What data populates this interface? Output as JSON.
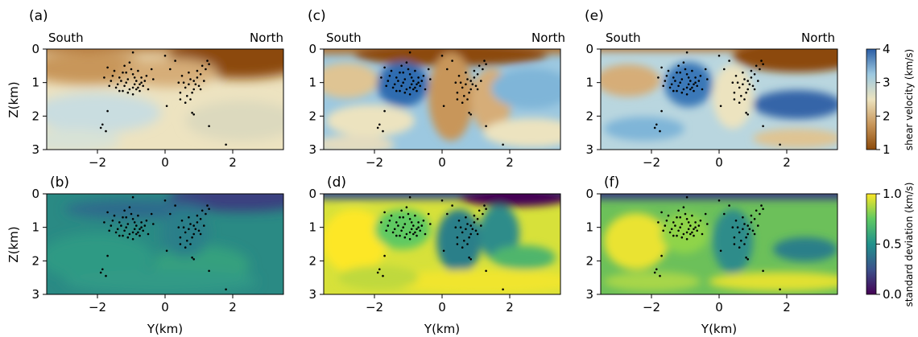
{
  "chart_data": [
    {
      "type": "heatmap",
      "panel_label": "(a)",
      "quantity": "shear velocity",
      "title_left": "South",
      "title_right": "North",
      "ylabel": "Z(km)",
      "xlabel": "",
      "xlim": [
        -3.5,
        3.5
      ],
      "ylim": [
        0,
        3
      ],
      "clim": [
        1,
        4
      ]
    },
    {
      "type": "heatmap",
      "panel_label": "(b)",
      "quantity": "standard deviation",
      "ylabel": "Z(km)",
      "xlabel": "Y(km)",
      "xlim": [
        -3.5,
        3.5
      ],
      "ylim": [
        0,
        3
      ],
      "clim": [
        0,
        1
      ]
    },
    {
      "type": "heatmap",
      "panel_label": "(c)",
      "quantity": "shear velocity",
      "title_left": "South",
      "title_right": "North",
      "ylabel": "",
      "xlabel": "",
      "xlim": [
        -3.5,
        3.5
      ],
      "ylim": [
        0,
        3
      ],
      "clim": [
        1,
        4
      ]
    },
    {
      "type": "heatmap",
      "panel_label": "(d)",
      "quantity": "standard deviation",
      "ylabel": "",
      "xlabel": "Y(km)",
      "xlim": [
        -3.5,
        3.5
      ],
      "ylim": [
        0,
        3
      ],
      "clim": [
        0,
        1
      ]
    },
    {
      "type": "heatmap",
      "panel_label": "(e)",
      "quantity": "shear velocity",
      "title_left": "South",
      "title_right": "North",
      "ylabel": "",
      "xlabel": "",
      "xlim": [
        -3.5,
        3.5
      ],
      "ylim": [
        0,
        3
      ],
      "clim": [
        1,
        4
      ]
    },
    {
      "type": "heatmap",
      "panel_label": "(f)",
      "quantity": "standard deviation",
      "ylabel": "",
      "xlabel": "Y(km)",
      "xlim": [
        -3.5,
        3.5
      ],
      "ylim": [
        0,
        3
      ],
      "clim": [
        0,
        1
      ]
    }
  ],
  "axes": {
    "x_ticks": [
      -2,
      0,
      2
    ],
    "x_tick_labels": [
      "−2",
      "0",
      "2"
    ],
    "y_ticks": [
      0,
      1,
      2,
      3
    ],
    "y_tick_labels": [
      "0",
      "1",
      "2",
      "3"
    ]
  },
  "colorbars": {
    "velocity": {
      "label": "shear velocity (km/s)",
      "ticks": [
        1,
        2,
        3,
        4
      ],
      "tick_labels": [
        "1",
        "2",
        "3",
        "4"
      ],
      "colors": [
        "#8c4a0a",
        "#c8965a",
        "#ece3bf",
        "#9cc8e0",
        "#2b5ea5"
      ]
    },
    "deviation": {
      "label": "standard deviation (km/s)",
      "ticks": [
        0,
        0.5,
        1
      ],
      "tick_labels": [
        "0.0",
        "0.5",
        "1.0"
      ],
      "colors": [
        "#440154",
        "#3b528b",
        "#21918c",
        "#5ec962",
        "#fde725"
      ]
    }
  },
  "events": [
    {
      "y": -0.85,
      "z": 0.95
    },
    {
      "y": -1.1,
      "z": 0.9
    },
    {
      "y": -0.75,
      "z": 1.05
    },
    {
      "y": -1.2,
      "z": 1.1
    },
    {
      "y": -0.95,
      "z": 0.75
    },
    {
      "y": -1.35,
      "z": 0.85
    },
    {
      "y": -0.8,
      "z": 1.15
    },
    {
      "y": -1.05,
      "z": 1.2
    },
    {
      "y": -0.7,
      "z": 0.85
    },
    {
      "y": -1.25,
      "z": 0.7
    },
    {
      "y": -0.9,
      "z": 1.05
    },
    {
      "y": -1.15,
      "z": 1.0
    },
    {
      "y": -1.4,
      "z": 1.05
    },
    {
      "y": -0.65,
      "z": 1.1
    },
    {
      "y": -1.0,
      "z": 0.6
    },
    {
      "y": -0.85,
      "z": 1.2
    },
    {
      "y": -1.3,
      "z": 0.95
    },
    {
      "y": -1.55,
      "z": 0.8
    },
    {
      "y": -1.6,
      "z": 0.95
    },
    {
      "y": -0.6,
      "z": 0.95
    },
    {
      "y": -1.2,
      "z": 0.5
    },
    {
      "y": -0.75,
      "z": 1.25
    },
    {
      "y": -1.45,
      "z": 1.15
    },
    {
      "y": -1.7,
      "z": 0.55
    },
    {
      "y": -1.1,
      "z": 1.3
    },
    {
      "y": -0.95,
      "z": 1.15
    },
    {
      "y": -0.55,
      "z": 0.8
    },
    {
      "y": -1.5,
      "z": 0.65
    },
    {
      "y": -1.25,
      "z": 1.25
    },
    {
      "y": -0.9,
      "z": 0.85
    },
    {
      "y": -0.4,
      "z": 0.6
    },
    {
      "y": -1.8,
      "z": 0.85
    },
    {
      "y": -1.05,
      "z": 0.4
    },
    {
      "y": -0.8,
      "z": 0.65
    },
    {
      "y": -1.65,
      "z": 1.1
    },
    {
      "y": -1.15,
      "z": 0.7
    },
    {
      "y": -0.7,
      "z": 1.0
    },
    {
      "y": -1.35,
      "z": 1.25
    },
    {
      "y": -0.95,
      "z": 1.35
    },
    {
      "y": -0.5,
      "z": 1.2
    },
    {
      "y": 0.75,
      "z": 0.9
    },
    {
      "y": 0.9,
      "z": 1.05
    },
    {
      "y": 0.6,
      "z": 1.15
    },
    {
      "y": 1.05,
      "z": 0.75
    },
    {
      "y": 0.8,
      "z": 1.3
    },
    {
      "y": 1.2,
      "z": 0.6
    },
    {
      "y": 0.7,
      "z": 0.7
    },
    {
      "y": 0.95,
      "z": 0.85
    },
    {
      "y": 0.55,
      "z": 1.0
    },
    {
      "y": 1.15,
      "z": 0.95
    },
    {
      "y": 1.3,
      "z": 0.45
    },
    {
      "y": 0.85,
      "z": 1.2
    },
    {
      "y": 0.65,
      "z": 1.4
    },
    {
      "y": 1.0,
      "z": 1.1
    },
    {
      "y": 0.5,
      "z": 0.8
    },
    {
      "y": 1.1,
      "z": 0.5
    },
    {
      "y": 0.75,
      "z": 1.5
    },
    {
      "y": 0.4,
      "z": 1.0
    },
    {
      "y": 0.95,
      "z": 0.65
    },
    {
      "y": 1.25,
      "z": 0.35
    },
    {
      "y": 0.6,
      "z": 1.6
    },
    {
      "y": 0.85,
      "z": 0.95
    },
    {
      "y": 0.7,
      "z": 1.05
    },
    {
      "y": 1.05,
      "z": 1.2
    },
    {
      "y": 0.45,
      "z": 1.3
    },
    {
      "y": 0.0,
      "z": 0.2
    },
    {
      "y": 0.3,
      "z": 0.35
    },
    {
      "y": 0.15,
      "z": 0.6
    },
    {
      "y": -1.85,
      "z": 2.25
    },
    {
      "y": -1.9,
      "z": 2.35
    },
    {
      "y": -1.75,
      "z": 2.45
    },
    {
      "y": -1.7,
      "z": 1.85
    },
    {
      "y": 0.8,
      "z": 1.9
    },
    {
      "y": 0.85,
      "z": 1.95
    },
    {
      "y": 1.3,
      "z": 2.3
    },
    {
      "y": 1.8,
      "z": 2.85
    },
    {
      "y": -0.95,
      "z": 0.1
    },
    {
      "y": 0.05,
      "z": 1.7
    },
    {
      "y": 0.45,
      "z": 1.5
    },
    {
      "y": -0.35,
      "z": 0.9
    }
  ]
}
